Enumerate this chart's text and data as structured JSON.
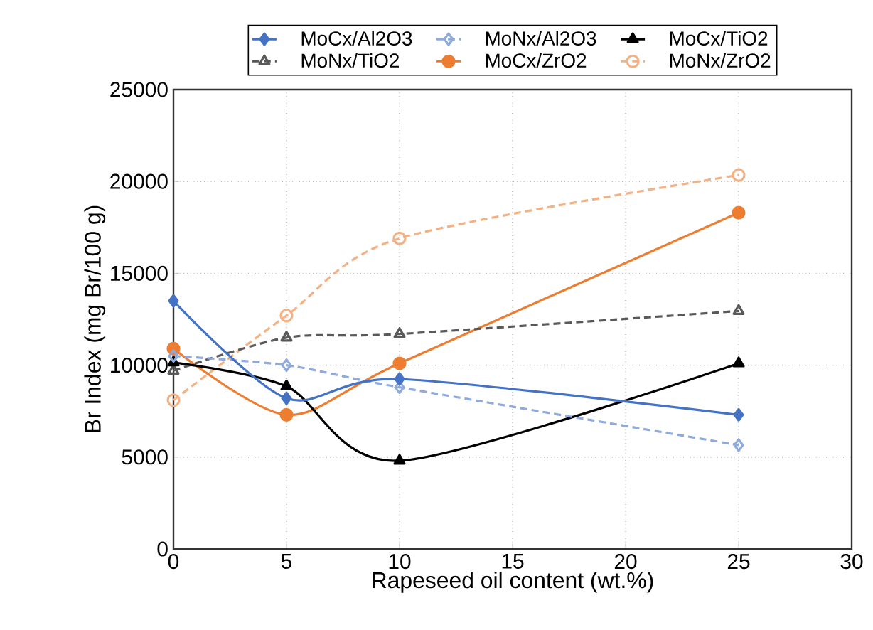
{
  "chart_data": {
    "type": "line",
    "xlabel": "Rapeseed oil content (wt.%)",
    "ylabel": "Br Index (mg Br/100 g)",
    "x": [
      0,
      5,
      10,
      25
    ],
    "xlim": [
      0,
      30
    ],
    "xticks": [
      0,
      5,
      10,
      15,
      20,
      25,
      30
    ],
    "ylim": [
      0,
      25000
    ],
    "yticks": [
      0,
      5000,
      10000,
      15000,
      20000,
      25000
    ],
    "grid": true,
    "legend": "top",
    "series": [
      {
        "name": "MoCx/Al2O3",
        "color": "#4472c4",
        "marker": "diamond",
        "line_style": "solid",
        "values": [
          13500,
          8200,
          9250,
          7300
        ]
      },
      {
        "name": "MoNx/Al2O3",
        "color": "#8faadc",
        "marker": "diamond",
        "line_style": "dashed",
        "values": [
          10500,
          10000,
          8800,
          5650
        ]
      },
      {
        "name": "MoCx/TiO2",
        "color": "#000000",
        "marker": "triangle",
        "line_style": "solid",
        "values": [
          10150,
          8850,
          4800,
          10100
        ]
      },
      {
        "name": "MoNx/TiO2",
        "color": "#595959",
        "marker": "triangle",
        "line_style": "dashed",
        "values": [
          9700,
          11500,
          11700,
          12950
        ]
      },
      {
        "name": "MoCx/ZrO2",
        "color": "#ed7d31",
        "marker": "circle",
        "line_style": "solid",
        "values": [
          10900,
          7300,
          10100,
          18300
        ]
      },
      {
        "name": "MoNx/ZrO2",
        "color": "#f4b183",
        "marker": "circle",
        "line_style": "dashed",
        "values": [
          8100,
          12700,
          16900,
          20350
        ]
      }
    ]
  }
}
